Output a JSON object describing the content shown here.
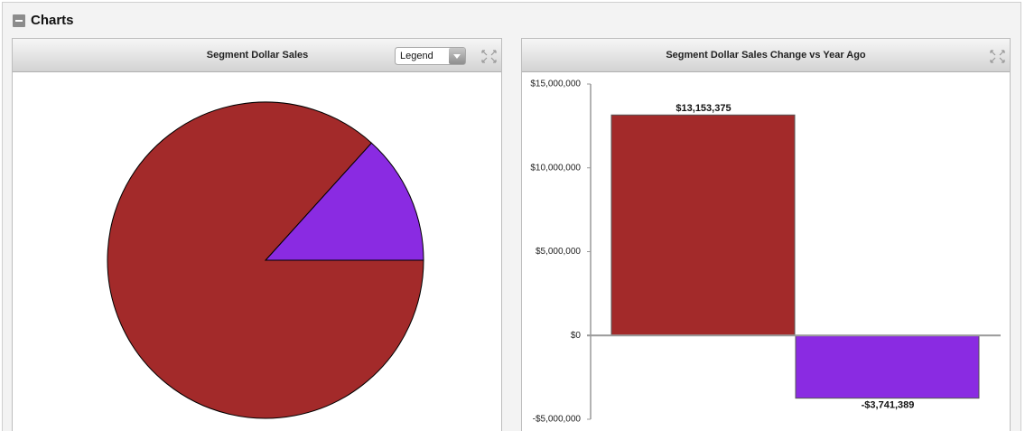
{
  "header": {
    "title": "Charts"
  },
  "controls": {
    "legend_select": "Legend"
  },
  "chart_data": [
    {
      "type": "pie",
      "title": "Segment Dollar Sales",
      "values": [
        13.3,
        86.7
      ],
      "colors": [
        "#8a2be2",
        "#a32a2a"
      ]
    },
    {
      "type": "bar",
      "title": "Segment Dollar Sales Change vs Year Ago",
      "categories": [
        null,
        null
      ],
      "values": [
        13153375,
        -3741389
      ],
      "value_labels": [
        "$13,153,375",
        "-$3,741,389"
      ],
      "colors": [
        "#a32a2a",
        "#8a2be2"
      ],
      "ylim": [
        -5000000,
        15000000
      ],
      "yticks": [
        {
          "value": -5000000,
          "label": "-$5,000,000"
        },
        {
          "value": 0,
          "label": "$0"
        },
        {
          "value": 5000000,
          "label": "$5,000,000"
        },
        {
          "value": 10000000,
          "label": "$10,000,000"
        },
        {
          "value": 15000000,
          "label": "$15,000,000"
        }
      ]
    }
  ]
}
